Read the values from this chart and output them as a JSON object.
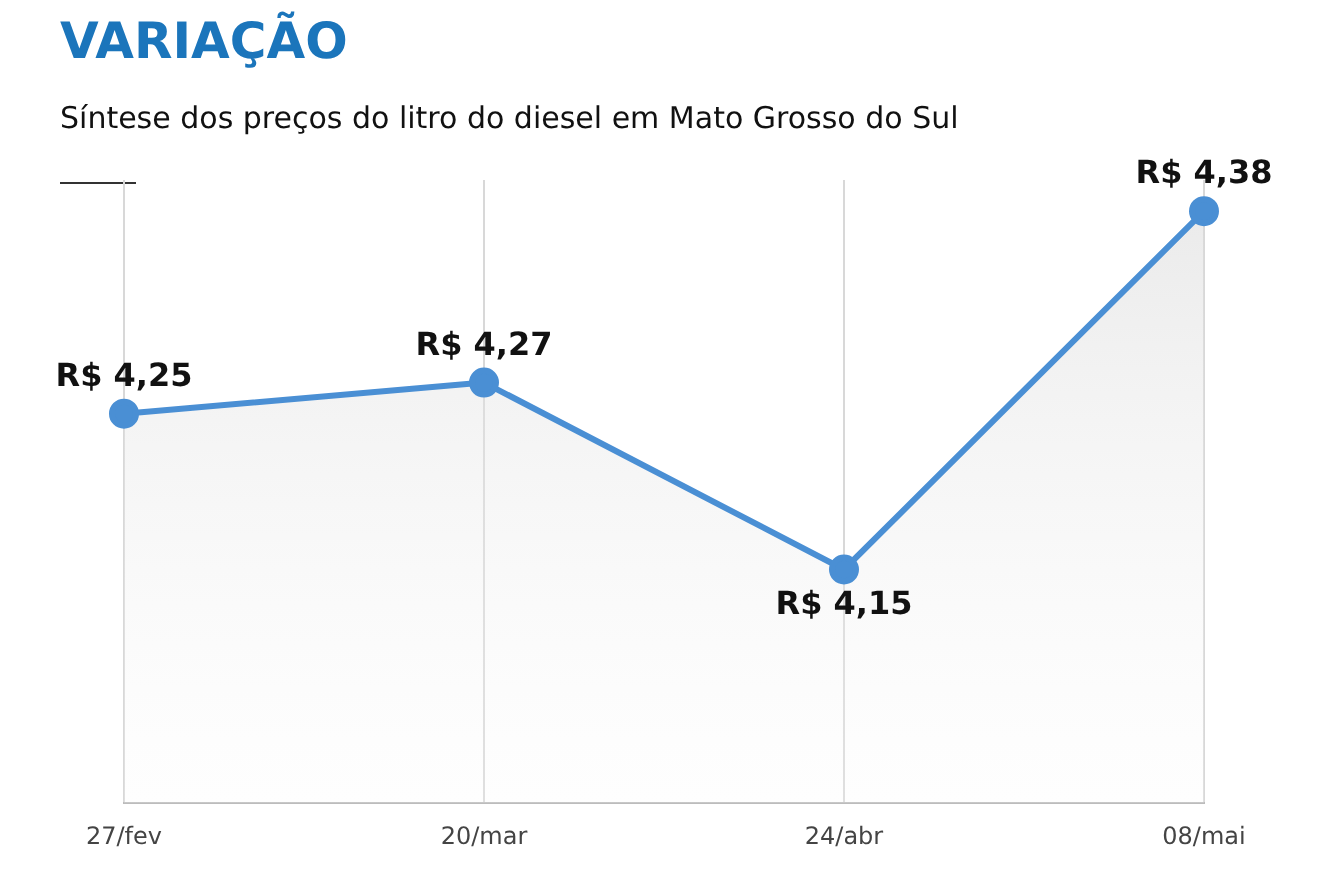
{
  "chart_data": {
    "type": "area",
    "title": "VARIAÇÃO",
    "subtitle": "Síntese dos preços do litro do diesel em Mato Grosso do Sul",
    "categories": [
      "27/fev",
      "20/mar",
      "24/abr",
      "08/mai"
    ],
    "series": [
      {
        "color": "#4a8fd4",
        "values": [
          4.25,
          4.27,
          4.15,
          4.38
        ],
        "value_labels": [
          "R$ 4,25",
          "R$ 4,27",
          "R$ 4,15",
          "R$ 4,38"
        ]
      }
    ],
    "ylim": [
      4.0,
      4.4
    ],
    "grid": "x",
    "marker": "circle",
    "legend": false,
    "tick_labels": "x"
  }
}
